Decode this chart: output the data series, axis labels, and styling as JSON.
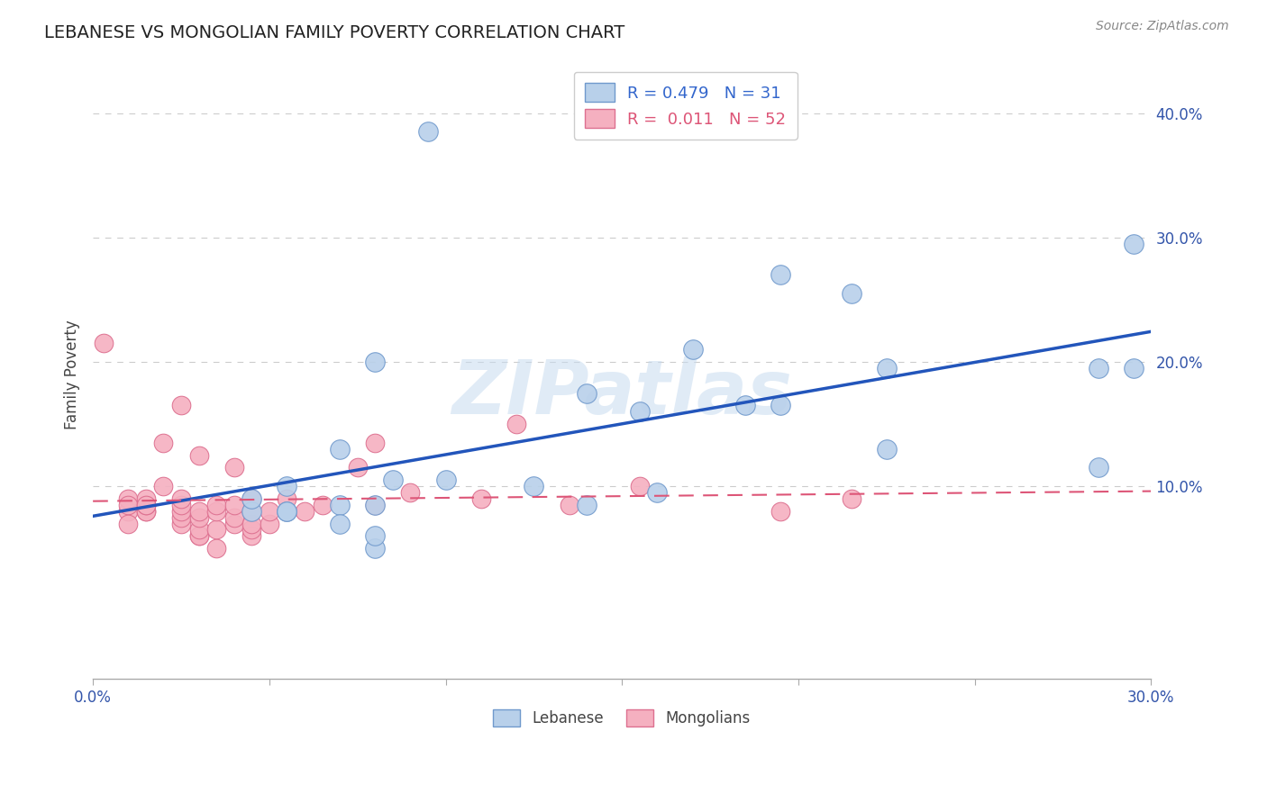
{
  "title": "LEBANESE VS MONGOLIAN FAMILY POVERTY CORRELATION CHART",
  "source": "Source: ZipAtlas.com",
  "ylabel": "Family Poverty",
  "xlim": [
    0.0,
    0.3
  ],
  "ylim": [
    -0.055,
    0.435
  ],
  "x_ticks": [
    0.0,
    0.05,
    0.1,
    0.15,
    0.2,
    0.25,
    0.3
  ],
  "x_tick_labels": [
    "0.0%",
    "",
    "",
    "",
    "",
    "",
    "30.0%"
  ],
  "y_ticks": [
    0.0,
    0.1,
    0.2,
    0.3,
    0.4
  ],
  "y_tick_labels": [
    "",
    "10.0%",
    "20.0%",
    "30.0%",
    "40.0%"
  ],
  "lebanese_color": "#b8d0ea",
  "mongolian_color": "#f5b0c0",
  "lebanese_edge": "#7099cc",
  "mongolian_edge": "#dd7090",
  "legend_R_lebanese": "R = 0.479   N = 31",
  "legend_R_mongolian": "R =  0.011   N = 52",
  "watermark": "ZIPatlas",
  "lebanese_x": [
    0.095,
    0.215,
    0.17,
    0.08,
    0.14,
    0.185,
    0.195,
    0.195,
    0.225,
    0.285,
    0.295,
    0.295,
    0.225,
    0.155,
    0.07,
    0.07,
    0.08,
    0.085,
    0.1,
    0.125,
    0.14,
    0.16,
    0.055,
    0.055,
    0.045,
    0.045,
    0.055,
    0.07,
    0.08,
    0.08,
    0.285
  ],
  "lebanese_y": [
    0.385,
    0.255,
    0.21,
    0.2,
    0.175,
    0.165,
    0.165,
    0.27,
    0.195,
    0.195,
    0.295,
    0.195,
    0.13,
    0.16,
    0.13,
    0.085,
    0.085,
    0.105,
    0.105,
    0.1,
    0.085,
    0.095,
    0.1,
    0.08,
    0.08,
    0.09,
    0.08,
    0.07,
    0.05,
    0.06,
    0.115
  ],
  "mongolian_x": [
    0.003,
    0.01,
    0.01,
    0.01,
    0.01,
    0.015,
    0.015,
    0.015,
    0.015,
    0.015,
    0.02,
    0.02,
    0.025,
    0.025,
    0.025,
    0.025,
    0.025,
    0.025,
    0.03,
    0.03,
    0.03,
    0.03,
    0.03,
    0.03,
    0.035,
    0.035,
    0.035,
    0.035,
    0.04,
    0.04,
    0.04,
    0.04,
    0.045,
    0.045,
    0.045,
    0.045,
    0.045,
    0.05,
    0.05,
    0.055,
    0.06,
    0.065,
    0.075,
    0.08,
    0.08,
    0.09,
    0.11,
    0.12,
    0.135,
    0.155,
    0.195,
    0.215
  ],
  "mongolian_y": [
    0.215,
    0.08,
    0.09,
    0.085,
    0.07,
    0.08,
    0.08,
    0.085,
    0.09,
    0.085,
    0.1,
    0.135,
    0.07,
    0.075,
    0.08,
    0.085,
    0.09,
    0.165,
    0.06,
    0.06,
    0.065,
    0.075,
    0.08,
    0.125,
    0.05,
    0.065,
    0.08,
    0.085,
    0.07,
    0.075,
    0.085,
    0.115,
    0.06,
    0.065,
    0.07,
    0.08,
    0.09,
    0.07,
    0.08,
    0.09,
    0.08,
    0.085,
    0.115,
    0.085,
    0.135,
    0.095,
    0.09,
    0.15,
    0.085,
    0.1,
    0.08,
    0.09
  ]
}
